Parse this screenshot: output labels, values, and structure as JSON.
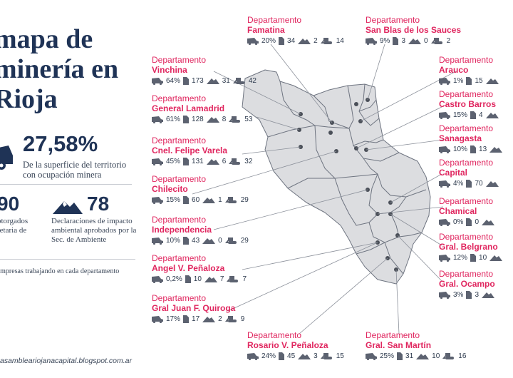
{
  "title": {
    "line1": "mapa de",
    "line2": "minería en",
    "line3": "Rioja"
  },
  "stat_surface": {
    "value": "27,58%",
    "desc": "De la superficie del territorio con ocupación minera"
  },
  "stat_permits": {
    "value": "90",
    "desc": "otorgados retaria de"
  },
  "stat_env": {
    "value": "78",
    "desc": "Declaraciones de impacto ambiental aprobados por la Sec. de Ambiente"
  },
  "legend_note": "Empresas trabajando en cada departamento",
  "footer": "asambleariojanacapital.blogspot.com.ar",
  "icons": {
    "truck": "truck-icon",
    "doc": "document-icon",
    "mountain": "mountain-icon",
    "bulldozer": "bulldozer-icon"
  },
  "colors": {
    "accent": "#e0265f",
    "navy": "#1f3356",
    "map_fill": "#dcdde0",
    "map_stroke": "#6e7480",
    "leader": "#8b909a"
  },
  "dept_prefix": "Departamento",
  "departments": [
    {
      "name": "Famatina",
      "pct": "20%",
      "docs": "34",
      "mount": "2",
      "dozer": "14"
    },
    {
      "name": "San Blas de los Sauces",
      "pct": "9%",
      "docs": "3",
      "mount": "0",
      "dozer": "2"
    },
    {
      "name": "Vinchina",
      "pct": "64%",
      "docs": "173",
      "mount": "31",
      "dozer": "42"
    },
    {
      "name": "Arauco",
      "pct": "1%",
      "docs": "15",
      "mount": "",
      "dozer": ""
    },
    {
      "name": "General Lamadrid",
      "pct": "61%",
      "docs": "128",
      "mount": "8",
      "dozer": "53"
    },
    {
      "name": "Castro Barros",
      "pct": "15%",
      "docs": "4",
      "mount": "",
      "dozer": ""
    },
    {
      "name": "Cnel. Felipe Varela",
      "pct": "45%",
      "docs": "131",
      "mount": "6",
      "dozer": "32"
    },
    {
      "name": "Sanagasta",
      "pct": "10%",
      "docs": "13",
      "mount": "",
      "dozer": ""
    },
    {
      "name": "Capital",
      "pct": "4%",
      "docs": "70",
      "mount": "",
      "dozer": ""
    },
    {
      "name": "Chilecito",
      "pct": "15%",
      "docs": "60",
      "mount": "1",
      "dozer": "29"
    },
    {
      "name": "Chamical",
      "pct": "0%",
      "docs": "0",
      "mount": "",
      "dozer": ""
    },
    {
      "name": "Independencia",
      "pct": "10%",
      "docs": "43",
      "mount": "0",
      "dozer": "29"
    },
    {
      "name": "Gral. Belgrano",
      "pct": "12%",
      "docs": "10",
      "mount": "",
      "dozer": ""
    },
    {
      "name": "Angel V. Peñaloza",
      "pct": "0,2%",
      "docs": "10",
      "mount": "7",
      "dozer": "7"
    },
    {
      "name": "Gral. Ocampo",
      "pct": "3%",
      "docs": "3",
      "mount": "",
      "dozer": ""
    },
    {
      "name": "Gral Juan F. Quiroga",
      "pct": "17%",
      "docs": "17",
      "mount": "2",
      "dozer": "9"
    },
    {
      "name": "Rosario V. Peñaloza",
      "pct": "24%",
      "docs": "45",
      "mount": "3",
      "dozer": "15"
    },
    {
      "name": "Gral. San Martín",
      "pct": "25%",
      "docs": "31",
      "mount": "10",
      "dozer": "16"
    }
  ]
}
